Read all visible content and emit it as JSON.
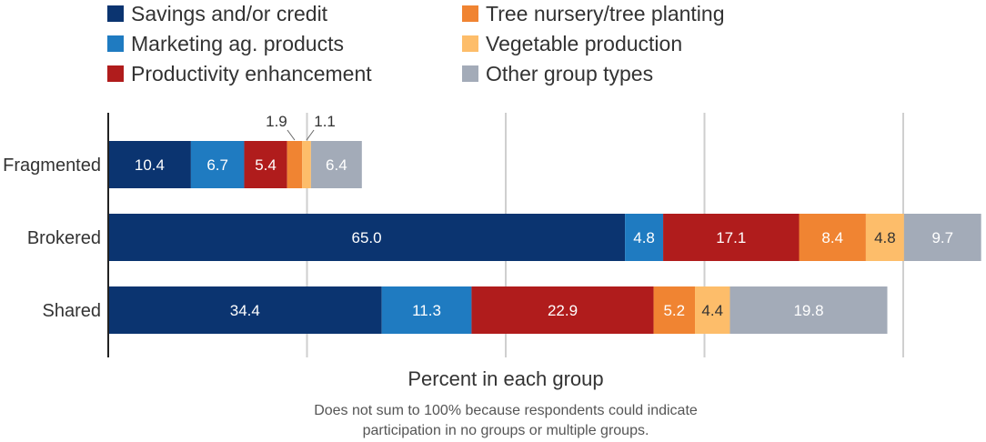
{
  "chart_data": {
    "type": "stacked-bar-horizontal",
    "title": "",
    "xlabel": "Percent in each group",
    "note_lines": [
      "Does not sum to 100% because respondents could indicate",
      "participation in no groups or multiple groups."
    ],
    "xlim": [
      0,
      110
    ],
    "grid_values": [
      0,
      25,
      50,
      75,
      100
    ],
    "grid": true,
    "legend_position": "top",
    "categories": [
      "Fragmented",
      "Brokered",
      "Shared"
    ],
    "series": [
      {
        "name": "Savings and/or credit",
        "color": "#0b3470",
        "label_color": "#ffffff",
        "values": [
          10.4,
          65.0,
          34.4
        ]
      },
      {
        "name": "Marketing ag. products",
        "color": "#1f7bc1",
        "label_color": "#ffffff",
        "values": [
          6.7,
          4.8,
          11.3
        ]
      },
      {
        "name": "Productivity enhancement",
        "color": "#b01c1c",
        "label_color": "#ffffff",
        "values": [
          5.4,
          17.1,
          22.9
        ]
      },
      {
        "name": "Tree nursery/tree planting",
        "color": "#f08432",
        "label_color": "#ffffff",
        "values": [
          1.9,
          8.4,
          5.2
        ]
      },
      {
        "name": "Vegetable production",
        "color": "#fdbd6a",
        "label_color": "#333333",
        "values": [
          1.1,
          4.8,
          4.4
        ]
      },
      {
        "name": "Other group types",
        "color": "#a3abb8",
        "label_color": "#ffffff",
        "values": [
          6.4,
          9.7,
          19.8
        ]
      }
    ],
    "value_labels": [
      [
        "10.4",
        "6.7",
        "5.4",
        "1.9",
        "1.1",
        "6.4"
      ],
      [
        "65.0",
        "4.8",
        "17.1",
        "8.4",
        "4.8",
        "9.7"
      ],
      [
        "34.4",
        "11.3",
        "22.9",
        "5.2",
        "4.4",
        "19.8"
      ]
    ]
  }
}
